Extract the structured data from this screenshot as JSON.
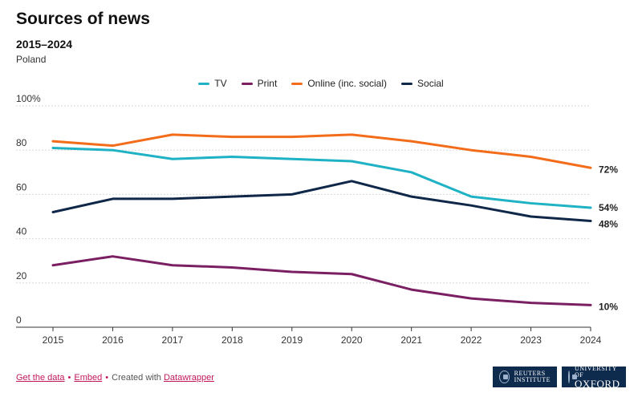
{
  "header": {
    "title": "Sources of news",
    "subtitle": "2015–2024",
    "region": "Poland"
  },
  "colors": {
    "tv": "#1fb2c4",
    "print": "#7b1f63",
    "online": "#f26c1a",
    "social": "#0f2748"
  },
  "chart_data": {
    "type": "line",
    "x": [
      2015,
      2016,
      2017,
      2018,
      2019,
      2020,
      2021,
      2022,
      2023,
      2024
    ],
    "ylim": [
      0,
      100
    ],
    "yticks": [
      0,
      20,
      40,
      60,
      80,
      100
    ],
    "ytick_labels": [
      "0",
      "20",
      "40",
      "60",
      "80",
      "100%"
    ],
    "xlabel": "",
    "ylabel": "",
    "grid": true,
    "legend_position": "top-center",
    "series": [
      {
        "key": "tv",
        "name": "TV",
        "values": [
          81,
          80,
          76,
          77,
          76,
          75,
          70,
          59,
          56,
          54
        ],
        "end_label": "54%"
      },
      {
        "key": "print",
        "name": "Print",
        "values": [
          28,
          32,
          28,
          27,
          25,
          24,
          17,
          13,
          11,
          10
        ],
        "end_label": "10%"
      },
      {
        "key": "online",
        "name": "Online (inc. social)",
        "values": [
          84,
          82,
          87,
          86,
          86,
          87,
          84,
          80,
          77,
          72
        ],
        "end_label": "72%"
      },
      {
        "key": "social",
        "name": "Social",
        "values": [
          52,
          58,
          58,
          59,
          60,
          66,
          59,
          55,
          50,
          48
        ],
        "end_label": "48%"
      }
    ]
  },
  "footer": {
    "get_data": "Get the data",
    "embed": "Embed",
    "created_with": "Created with",
    "datawrapper": "Datawrapper",
    "separator": "•"
  },
  "logos": {
    "reuters_line1": "REUTERS",
    "reuters_line2": "INSTITUTE",
    "oxford_line1": "UNIVERSITY OF",
    "oxford_line2": "OXFORD"
  }
}
